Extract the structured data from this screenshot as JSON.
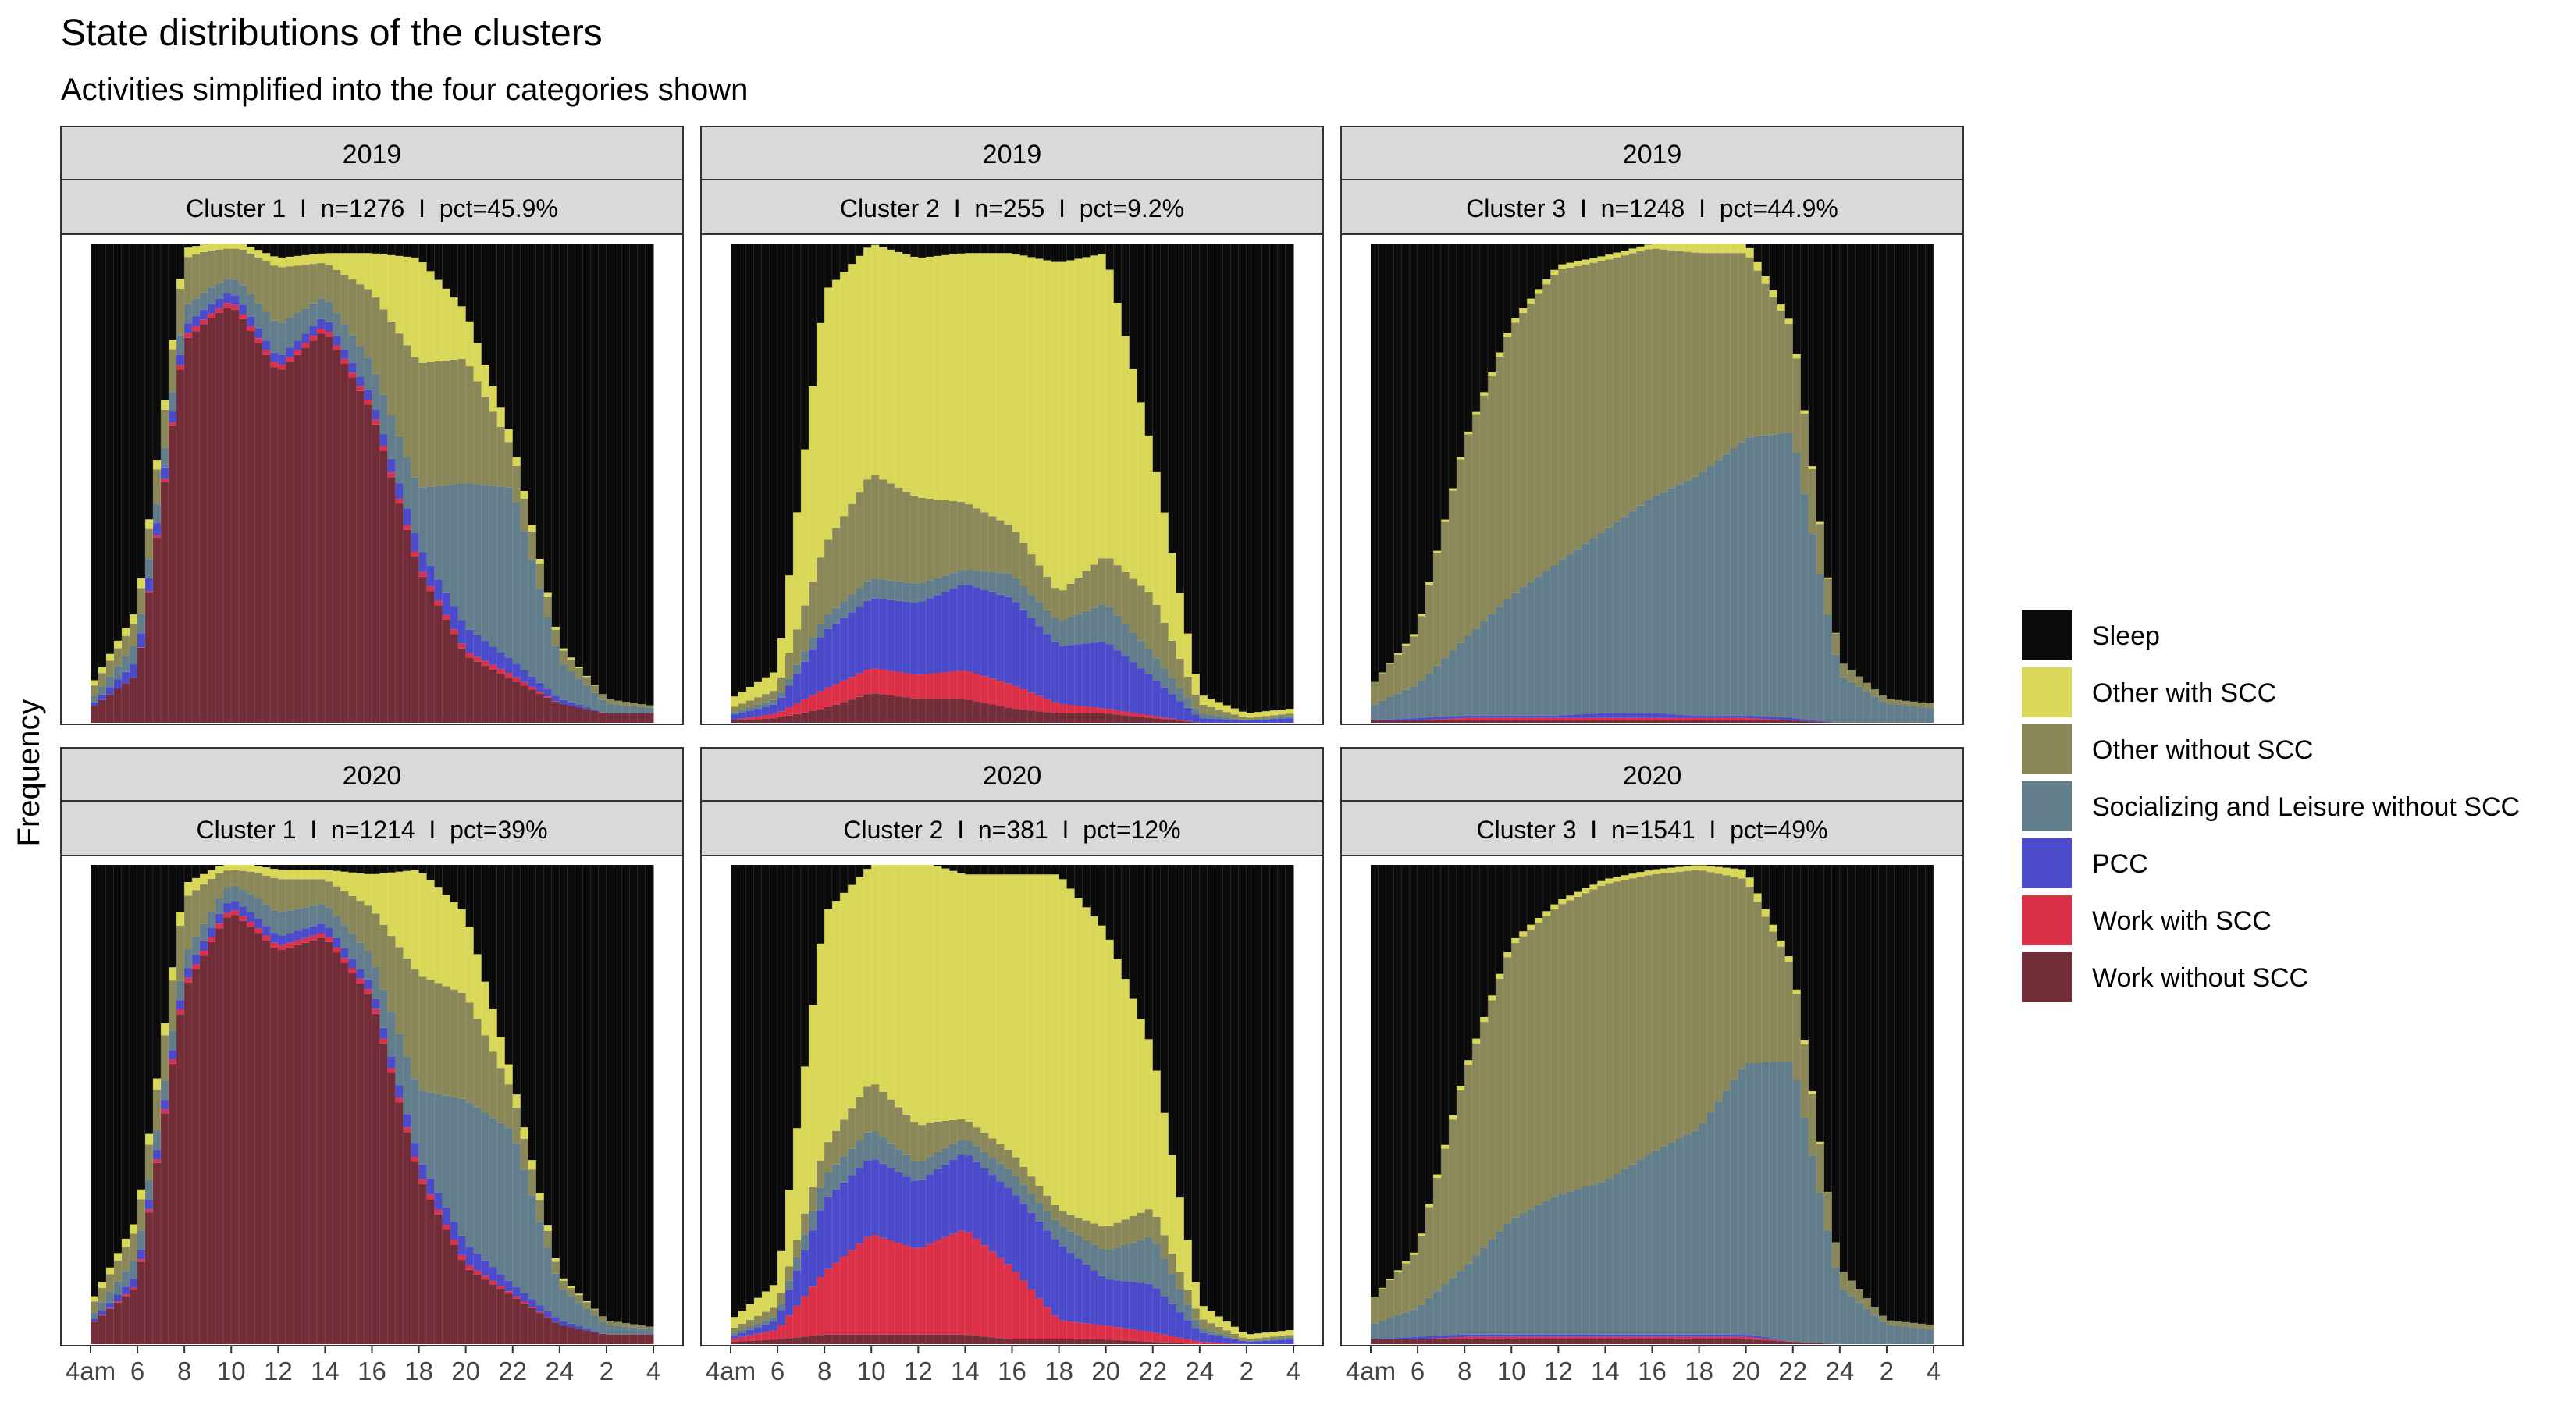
{
  "title": "State distributions of the clusters",
  "subtitle": "Activities simplified into the four categories shown",
  "ylabel": "Frequency",
  "colors": {
    "Sleep": "#0b0b0b",
    "Other with SCC": "#d9d757",
    "Other without SCC": "#8a8858",
    "Socializing and Leisure without SCC": "#627d8b",
    "PCC": "#4a4aca",
    "Work with SCC": "#db3048",
    "Work without SCC": "#722d38"
  },
  "legend": [
    {
      "label": "Sleep",
      "color": "#0b0b0b"
    },
    {
      "label": "Other with SCC",
      "color": "#d9d757"
    },
    {
      "label": "Other without SCC",
      "color": "#8a8858"
    },
    {
      "label": "Socializing and Leisure without SCC",
      "color": "#627d8b"
    },
    {
      "label": "PCC",
      "color": "#4a4aca"
    },
    {
      "label": "Work with SCC",
      "color": "#db3048"
    },
    {
      "label": "Work without SCC",
      "color": "#722d38"
    }
  ],
  "x_tick_labels": [
    "4am",
    "6",
    "8",
    "10",
    "12",
    "14",
    "16",
    "18",
    "20",
    "22",
    "24",
    "2",
    "4"
  ],
  "chart_data": [
    {
      "type": "bar",
      "stacked": true,
      "year_strip": "2019",
      "cluster_strip": "Cluster 1  I  n=1276  I  pct=45.9%",
      "x": [
        "4am",
        "6",
        "8",
        "10",
        "12",
        "14",
        "16",
        "18",
        "20",
        "22",
        "24",
        "2",
        "4"
      ],
      "series": [
        {
          "name": "Work without SCC",
          "values": [
            0.03,
            0.1,
            0.78,
            0.88,
            0.73,
            0.82,
            0.65,
            0.32,
            0.14,
            0.09,
            0.04,
            0.02,
            0.02
          ]
        },
        {
          "name": "Work with SCC",
          "values": [
            0,
            0,
            0.01,
            0.01,
            0.01,
            0.01,
            0.01,
            0.01,
            0.01,
            0.01,
            0,
            0,
            0
          ]
        },
        {
          "name": "PCC",
          "values": [
            0.005,
            0.03,
            0.02,
            0.02,
            0.02,
            0.02,
            0.02,
            0.04,
            0.05,
            0.03,
            0.01,
            0,
            0
          ]
        },
        {
          "name": "Socializing and Leisure without SCC",
          "values": [
            0.01,
            0.04,
            0.04,
            0.03,
            0.07,
            0.04,
            0.07,
            0.12,
            0.3,
            0.36,
            0.08,
            0.02,
            0.01
          ]
        },
        {
          "name": "Other without SCC",
          "values": [
            0.02,
            0.05,
            0.1,
            0.06,
            0.12,
            0.07,
            0.15,
            0.26,
            0.26,
            0.08,
            0.03,
            0.01,
            0.005
          ]
        },
        {
          "name": "Other with SCC",
          "values": [
            0.01,
            0.02,
            0.02,
            0.01,
            0.02,
            0.02,
            0.08,
            0.22,
            0.1,
            0.02,
            0.005,
            0,
            0
          ]
        },
        {
          "name": "Sleep",
          "values": [
            0.925,
            0.76,
            0.01,
            -0.01,
            0.03,
            0.02,
            0.02,
            0.03,
            0.14,
            0.41,
            0.835,
            0.95,
            0.955
          ]
        }
      ]
    },
    {
      "type": "bar",
      "stacked": true,
      "year_strip": "2019",
      "cluster_strip": "Cluster 2  I  n=255  I  pct=9.2%",
      "x": [
        "4am",
        "6",
        "8",
        "10",
        "12",
        "14",
        "16",
        "18",
        "20",
        "22",
        "24",
        "2",
        "4"
      ],
      "series": [
        {
          "name": "Work without SCC",
          "values": [
            0.005,
            0.01,
            0.03,
            0.06,
            0.05,
            0.05,
            0.03,
            0.02,
            0.02,
            0.01,
            0,
            0,
            0
          ]
        },
        {
          "name": "Work with SCC",
          "values": [
            0,
            0.01,
            0.04,
            0.05,
            0.05,
            0.06,
            0.05,
            0.02,
            0.01,
            0.005,
            0,
            0,
            0
          ]
        },
        {
          "name": "PCC",
          "values": [
            0.01,
            0.02,
            0.12,
            0.14,
            0.15,
            0.18,
            0.18,
            0.12,
            0.14,
            0.08,
            0.01,
            0.005,
            0.01
          ]
        },
        {
          "name": "Socializing and Leisure without SCC",
          "values": [
            0.005,
            0.01,
            0.03,
            0.04,
            0.04,
            0.03,
            0.05,
            0.05,
            0.08,
            0.05,
            0.01,
            0,
            0.005
          ]
        },
        {
          "name": "Other without SCC",
          "values": [
            0.01,
            0.02,
            0.15,
            0.21,
            0.18,
            0.14,
            0.1,
            0.06,
            0.1,
            0.12,
            0.02,
            0.005,
            0.005
          ]
        },
        {
          "name": "Other with SCC",
          "values": [
            0.02,
            0.04,
            0.53,
            0.46,
            0.5,
            0.52,
            0.57,
            0.69,
            0.63,
            0.3,
            0.02,
            0.01,
            0.01
          ]
        },
        {
          "name": "Sleep",
          "values": [
            0.95,
            0.89,
            0.1,
            0,
            0.03,
            0.02,
            0.02,
            0.04,
            0.02,
            0.435,
            0.94,
            0.98,
            0.97
          ]
        }
      ]
    },
    {
      "type": "bar",
      "stacked": true,
      "year_strip": "2019",
      "cluster_strip": "Cluster 3  I  n=1248  I  pct=44.9%",
      "x": [
        "4am",
        "6",
        "8",
        "10",
        "12",
        "14",
        "16",
        "18",
        "20",
        "22",
        "24",
        "2",
        "4"
      ],
      "series": [
        {
          "name": "Work without SCC",
          "values": [
            0.005,
            0.005,
            0.005,
            0.005,
            0.005,
            0.005,
            0.005,
            0.005,
            0.005,
            0.005,
            0,
            0,
            0
          ]
        },
        {
          "name": "Work with SCC",
          "values": [
            0,
            0,
            0.005,
            0.005,
            0.005,
            0.005,
            0.005,
            0.005,
            0.005,
            0,
            0,
            0,
            0
          ]
        },
        {
          "name": "PCC",
          "values": [
            0,
            0.005,
            0.005,
            0.005,
            0.005,
            0.01,
            0.01,
            0.005,
            0.005,
            0.005,
            0,
            0,
            0
          ]
        },
        {
          "name": "Socializing and Leisure without SCC",
          "values": [
            0.03,
            0.07,
            0.16,
            0.25,
            0.32,
            0.38,
            0.45,
            0.51,
            0.58,
            0.59,
            0.1,
            0.04,
            0.03
          ]
        },
        {
          "name": "Other without SCC",
          "values": [
            0.04,
            0.11,
            0.41,
            0.56,
            0.61,
            0.56,
            0.52,
            0.47,
            0.39,
            0.21,
            0.03,
            0.01,
            0.01
          ]
        },
        {
          "name": "Other with SCC",
          "values": [
            0,
            0.005,
            0.005,
            0.01,
            0.01,
            0.01,
            0.01,
            0.02,
            0.02,
            0.01,
            0,
            0,
            0
          ]
        },
        {
          "name": "Sleep",
          "values": [
            0.925,
            0.805,
            0.415,
            0.165,
            0.045,
            0.025,
            0.0,
            -0.01,
            -0.005,
            0.17,
            0.87,
            0.95,
            0.96
          ]
        }
      ]
    },
    {
      "type": "bar",
      "stacked": true,
      "year_strip": "2020",
      "cluster_strip": "Cluster 1  I  n=1214  I  pct=39%",
      "x": [
        "4am",
        "6",
        "8",
        "10",
        "12",
        "14",
        "16",
        "18",
        "20",
        "22",
        "24",
        "2",
        "4"
      ],
      "series": [
        {
          "name": "Work without SCC",
          "values": [
            0.04,
            0.12,
            0.74,
            0.91,
            0.82,
            0.85,
            0.72,
            0.35,
            0.16,
            0.1,
            0.04,
            0.02,
            0.02
          ]
        },
        {
          "name": "Work with SCC",
          "values": [
            0,
            0.005,
            0.01,
            0.01,
            0.01,
            0.01,
            0.01,
            0.01,
            0.01,
            0.005,
            0,
            0,
            0
          ]
        },
        {
          "name": "PCC",
          "values": [
            0.005,
            0.02,
            0.02,
            0.02,
            0.02,
            0.02,
            0.02,
            0.03,
            0.04,
            0.02,
            0.01,
            0,
            0
          ]
        },
        {
          "name": "Socializing and Leisure without SCC",
          "values": [
            0.01,
            0.04,
            0.04,
            0.03,
            0.05,
            0.04,
            0.06,
            0.14,
            0.3,
            0.32,
            0.07,
            0.02,
            0.01
          ]
        },
        {
          "name": "Other without SCC",
          "values": [
            0.02,
            0.06,
            0.12,
            0.03,
            0.07,
            0.05,
            0.1,
            0.24,
            0.22,
            0.08,
            0.02,
            0.01,
            0.005
          ]
        },
        {
          "name": "Other with SCC",
          "values": [
            0.01,
            0.02,
            0.03,
            0.01,
            0.02,
            0.02,
            0.07,
            0.22,
            0.17,
            0.03,
            0.005,
            0,
            0
          ]
        },
        {
          "name": "Sleep",
          "values": [
            0.915,
            0.735,
            0.04,
            -0.01,
            0.01,
            0.01,
            0.02,
            0.01,
            0.1,
            0.445,
            0.855,
            0.95,
            0.955
          ]
        }
      ]
    },
    {
      "type": "bar",
      "stacked": true,
      "year_strip": "2020",
      "cluster_strip": "Cluster 2  I  n=381  I  pct=12%",
      "x": [
        "4am",
        "6",
        "8",
        "10",
        "12",
        "14",
        "16",
        "18",
        "20",
        "22",
        "24",
        "2",
        "4"
      ],
      "series": [
        {
          "name": "Work without SCC",
          "values": [
            0.005,
            0.01,
            0.02,
            0.02,
            0.02,
            0.02,
            0.01,
            0.01,
            0.01,
            0.005,
            0,
            0,
            0
          ]
        },
        {
          "name": "Work with SCC",
          "values": [
            0.005,
            0.02,
            0.13,
            0.21,
            0.18,
            0.22,
            0.15,
            0.04,
            0.03,
            0.02,
            0.005,
            0,
            0
          ]
        },
        {
          "name": "PCC",
          "values": [
            0.005,
            0.02,
            0.15,
            0.16,
            0.14,
            0.16,
            0.16,
            0.16,
            0.1,
            0.1,
            0.02,
            0.005,
            0.01
          ]
        },
        {
          "name": "Socializing and Leisure without SCC",
          "values": [
            0.005,
            0.01,
            0.05,
            0.06,
            0.04,
            0.03,
            0.04,
            0.04,
            0.06,
            0.1,
            0.01,
            0,
            0.005
          ]
        },
        {
          "name": "Other without SCC",
          "values": [
            0.01,
            0.02,
            0.06,
            0.1,
            0.08,
            0.04,
            0.04,
            0.03,
            0.05,
            0.06,
            0.02,
            0.005,
            0.005
          ]
        },
        {
          "name": "Other with SCC",
          "values": [
            0.02,
            0.05,
            0.49,
            0.45,
            0.55,
            0.51,
            0.58,
            0.7,
            0.64,
            0.33,
            0.03,
            0.01,
            0.01
          ]
        },
        {
          "name": "Sleep",
          "values": [
            0.95,
            0.87,
            0.1,
            0,
            -0.01,
            0.02,
            0.02,
            0.02,
            0.14,
            0.385,
            0.915,
            0.98,
            0.97
          ]
        }
      ]
    },
    {
      "type": "bar",
      "stacked": true,
      "year_strip": "2020",
      "cluster_strip": "Cluster 3  I  n=1541  I  pct=49%",
      "x": [
        "4am",
        "6",
        "8",
        "10",
        "12",
        "14",
        "16",
        "18",
        "20",
        "22",
        "24",
        "2",
        "4"
      ],
      "series": [
        {
          "name": "Work without SCC",
          "values": [
            0.01,
            0.01,
            0.01,
            0.01,
            0.01,
            0.01,
            0.01,
            0.01,
            0.01,
            0.005,
            0,
            0,
            0
          ]
        },
        {
          "name": "Work with SCC",
          "values": [
            0,
            0,
            0.005,
            0.005,
            0.005,
            0.005,
            0.005,
            0.005,
            0.005,
            0,
            0,
            0,
            0
          ]
        },
        {
          "name": "PCC",
          "values": [
            0,
            0.005,
            0.005,
            0.005,
            0.005,
            0.005,
            0.005,
            0.005,
            0.005,
            0,
            0,
            0,
            0
          ]
        },
        {
          "name": "Socializing and Leisure without SCC",
          "values": [
            0.03,
            0.06,
            0.14,
            0.24,
            0.29,
            0.32,
            0.38,
            0.43,
            0.56,
            0.58,
            0.12,
            0.04,
            0.03
          ]
        },
        {
          "name": "Other without SCC",
          "values": [
            0.05,
            0.12,
            0.4,
            0.57,
            0.6,
            0.62,
            0.58,
            0.54,
            0.38,
            0.19,
            0.04,
            0.01,
            0.01
          ]
        },
        {
          "name": "Other with SCC",
          "values": [
            0,
            0.005,
            0.01,
            0.01,
            0.01,
            0.01,
            0.01,
            0.01,
            0.02,
            0.01,
            0,
            0,
            0
          ]
        },
        {
          "name": "Sleep",
          "values": [
            0.91,
            0.8,
            0.43,
            0.16,
            0.075,
            0.03,
            0.01,
            0.0,
            0.01,
            0.205,
            0.84,
            0.95,
            0.96
          ]
        }
      ]
    }
  ]
}
